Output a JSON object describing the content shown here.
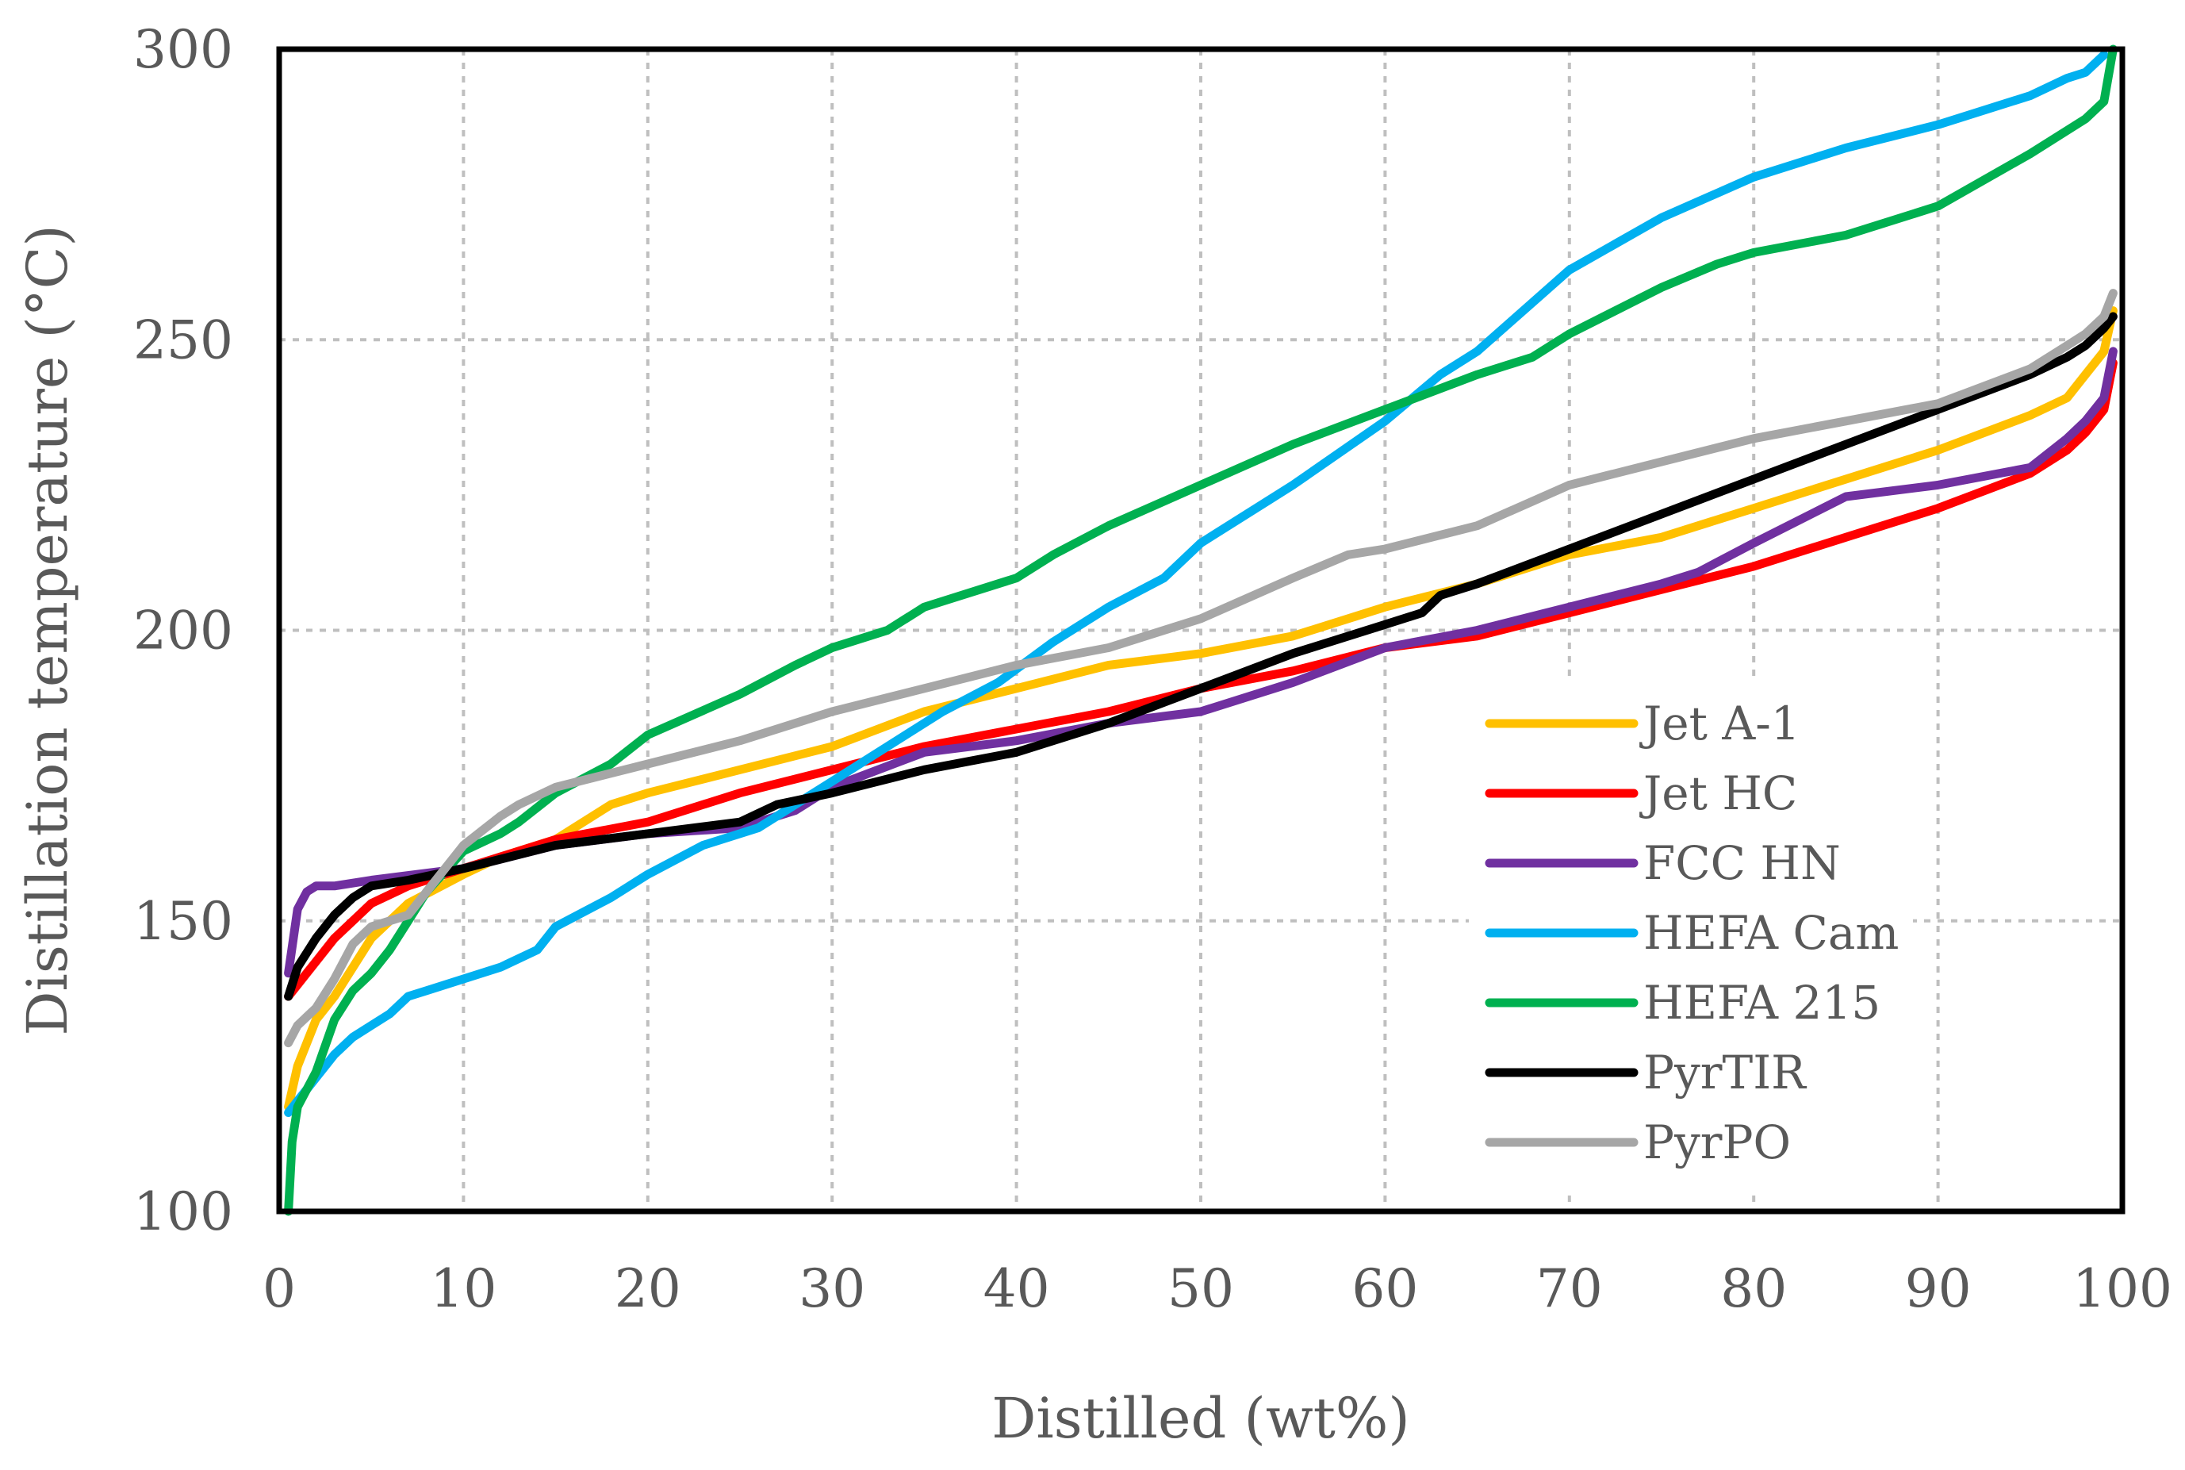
{
  "chart_data": {
    "type": "line",
    "xlabel": "Distilled (wt%)",
    "ylabel": "Distillation temperature (°C)",
    "xlim": [
      0,
      100
    ],
    "ylim": [
      100,
      300
    ],
    "xticks": [
      0,
      10,
      20,
      30,
      40,
      50,
      60,
      70,
      80,
      90,
      100
    ],
    "yticks": [
      100,
      150,
      200,
      250,
      300
    ],
    "xtick_labels": [
      "0",
      "10",
      "20",
      "30",
      "40",
      "50",
      "60",
      "70",
      "80",
      "90",
      "100"
    ],
    "ytick_labels": [
      "100",
      "150",
      "200",
      "250",
      "300"
    ],
    "grid": true,
    "legend_position": "lower-right",
    "series": [
      {
        "name": "Jet A-1",
        "color": "#FFC000",
        "x": [
          0.5,
          1,
          2,
          3,
          4,
          5,
          7,
          10,
          12,
          15,
          18,
          20,
          25,
          30,
          35,
          40,
          45,
          50,
          55,
          60,
          65,
          70,
          75,
          80,
          85,
          90,
          95,
          97,
          98,
          99,
          99.5
        ],
        "y": [
          118,
          125,
          133,
          137,
          142,
          147,
          153,
          158,
          161,
          164,
          170,
          172,
          176,
          180,
          186,
          190,
          194,
          196,
          199,
          204,
          208,
          213,
          216,
          221,
          226,
          231,
          237,
          240,
          244,
          248,
          255
        ]
      },
      {
        "name": "Jet HC",
        "color": "#FF0000",
        "x": [
          0.5,
          1,
          2,
          3,
          4,
          5,
          7,
          10,
          15,
          20,
          25,
          30,
          35,
          40,
          45,
          50,
          55,
          60,
          65,
          70,
          75,
          80,
          85,
          90,
          95,
          97,
          98,
          99,
          99.5
        ],
        "y": [
          137,
          139,
          143,
          147,
          150,
          153,
          156,
          159,
          164,
          167,
          172,
          176,
          180,
          183,
          186,
          190,
          193,
          197,
          199,
          203,
          207,
          211,
          216,
          221,
          227,
          231,
          234,
          238,
          246
        ]
      },
      {
        "name": "FCC HN",
        "color": "#7030A0",
        "x": [
          0.5,
          1,
          1.5,
          2,
          3,
          5,
          10,
          15,
          20,
          25,
          28,
          30,
          35,
          40,
          45,
          50,
          55,
          60,
          65,
          70,
          75,
          77,
          80,
          85,
          90,
          95,
          97,
          98,
          99,
          99.5
        ],
        "y": [
          141,
          152,
          155,
          156,
          156,
          157,
          159,
          163,
          165,
          166,
          169,
          173,
          179,
          181,
          184,
          186,
          191,
          197,
          200,
          204,
          208,
          210,
          215,
          223,
          225,
          228,
          233,
          236,
          240,
          248
        ]
      },
      {
        "name": "HEFA Cam",
        "color": "#00B0F0",
        "x": [
          0.5,
          1,
          2,
          3,
          4,
          5,
          6,
          7,
          8,
          10,
          12,
          14,
          15,
          18,
          20,
          23,
          26,
          27,
          30,
          33,
          36,
          39,
          42,
          45,
          48,
          50,
          55,
          60,
          63,
          65,
          70,
          75,
          80,
          85,
          90,
          95,
          97,
          98,
          99
        ],
        "y": [
          117,
          119,
          123,
          127,
          130,
          132,
          134,
          137,
          138,
          140,
          142,
          145,
          149,
          154,
          158,
          163,
          166,
          168,
          174,
          180,
          186,
          191,
          198,
          204,
          209,
          215,
          225,
          236,
          244,
          248,
          262,
          271,
          278,
          283,
          287,
          292,
          295,
          296,
          299
        ]
      },
      {
        "name": "HEFA 215",
        "color": "#00B050",
        "x": [
          0.5,
          0.7,
          1,
          2,
          3,
          4,
          5,
          6,
          7,
          8,
          10,
          12,
          13,
          15,
          18,
          20,
          25,
          28,
          30,
          33,
          35,
          40,
          42,
          45,
          50,
          55,
          60,
          65,
          68,
          70,
          75,
          78,
          80,
          85,
          90,
          95,
          97,
          98,
          99,
          99.5
        ],
        "y": [
          100,
          112,
          118,
          124,
          133,
          138,
          141,
          145,
          150,
          155,
          162,
          165,
          167,
          172,
          177,
          182,
          189,
          194,
          197,
          200,
          204,
          209,
          213,
          218,
          225,
          232,
          238,
          244,
          247,
          251,
          259,
          263,
          265,
          268,
          273,
          282,
          286,
          288,
          291,
          300
        ]
      },
      {
        "name": "PyrTIR",
        "color": "#000000",
        "x": [
          0.5,
          1,
          2,
          3,
          4,
          5,
          7,
          10,
          15,
          20,
          25,
          27,
          30,
          35,
          40,
          45,
          50,
          55,
          60,
          62,
          63,
          65,
          70,
          75,
          80,
          85,
          90,
          95,
          97,
          98,
          99,
          99.5
        ],
        "y": [
          137,
          142,
          147,
          151,
          154,
          156,
          157,
          159,
          163,
          165,
          167,
          170,
          172,
          176,
          179,
          184,
          190,
          196,
          201,
          203,
          206,
          208,
          214,
          220,
          226,
          232,
          238,
          244,
          247,
          249,
          252,
          254
        ]
      },
      {
        "name": "PyrPO",
        "color": "#A6A6A6",
        "x": [
          0.5,
          1,
          2,
          3,
          4,
          5,
          7,
          8,
          10,
          12,
          13,
          15,
          20,
          25,
          30,
          35,
          40,
          45,
          50,
          55,
          58,
          60,
          65,
          70,
          75,
          80,
          85,
          90,
          95,
          97,
          98,
          99,
          99.5
        ],
        "y": [
          129,
          132,
          135,
          140,
          146,
          149,
          151,
          155,
          163,
          168,
          170,
          173,
          177,
          181,
          186,
          190,
          194,
          197,
          202,
          209,
          213,
          214,
          218,
          225,
          229,
          233,
          236,
          239,
          245,
          249,
          251,
          254,
          258
        ]
      }
    ]
  }
}
